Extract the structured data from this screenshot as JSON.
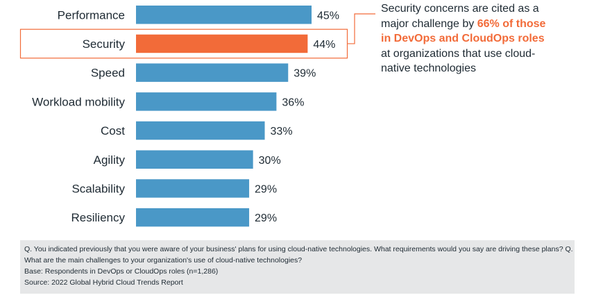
{
  "chart_data": {
    "type": "bar",
    "orientation": "horizontal",
    "categories": [
      "Performance",
      "Security",
      "Speed",
      "Workload mobility",
      "Cost",
      "Agility",
      "Scalability",
      "Resiliency"
    ],
    "values": [
      45,
      44,
      39,
      36,
      33,
      30,
      29,
      29
    ],
    "value_labels": [
      "45%",
      "44%",
      "39%",
      "36%",
      "33%",
      "30%",
      "29%",
      "29%"
    ],
    "highlight_category": "Security",
    "xlim": [
      0,
      45
    ],
    "grid": false,
    "legend": "none"
  },
  "colors": {
    "bar": "#4a98c7",
    "highlight": "#f26b39",
    "text": "#1e2a33",
    "footnote_bg": "#e6e7e8"
  },
  "callout": {
    "text_before": "Security concerns are cited as a major challenge by ",
    "highlight": "66% of those in DevOps and CloudOps roles",
    "text_after": " at organizations that use cloud-native technologies"
  },
  "footnote": {
    "question": "Q. You indicated previously that you were aware of your business' plans for using cloud-native technologies. What requirements would you say are driving these plans? Q. What are the main challenges to your organization's use of cloud-native technologies?",
    "base": "Base: Respondents in DevOps or CloudOps roles (n=1,286)",
    "source": "Source: 2022 Global Hybrid Cloud Trends Report"
  }
}
